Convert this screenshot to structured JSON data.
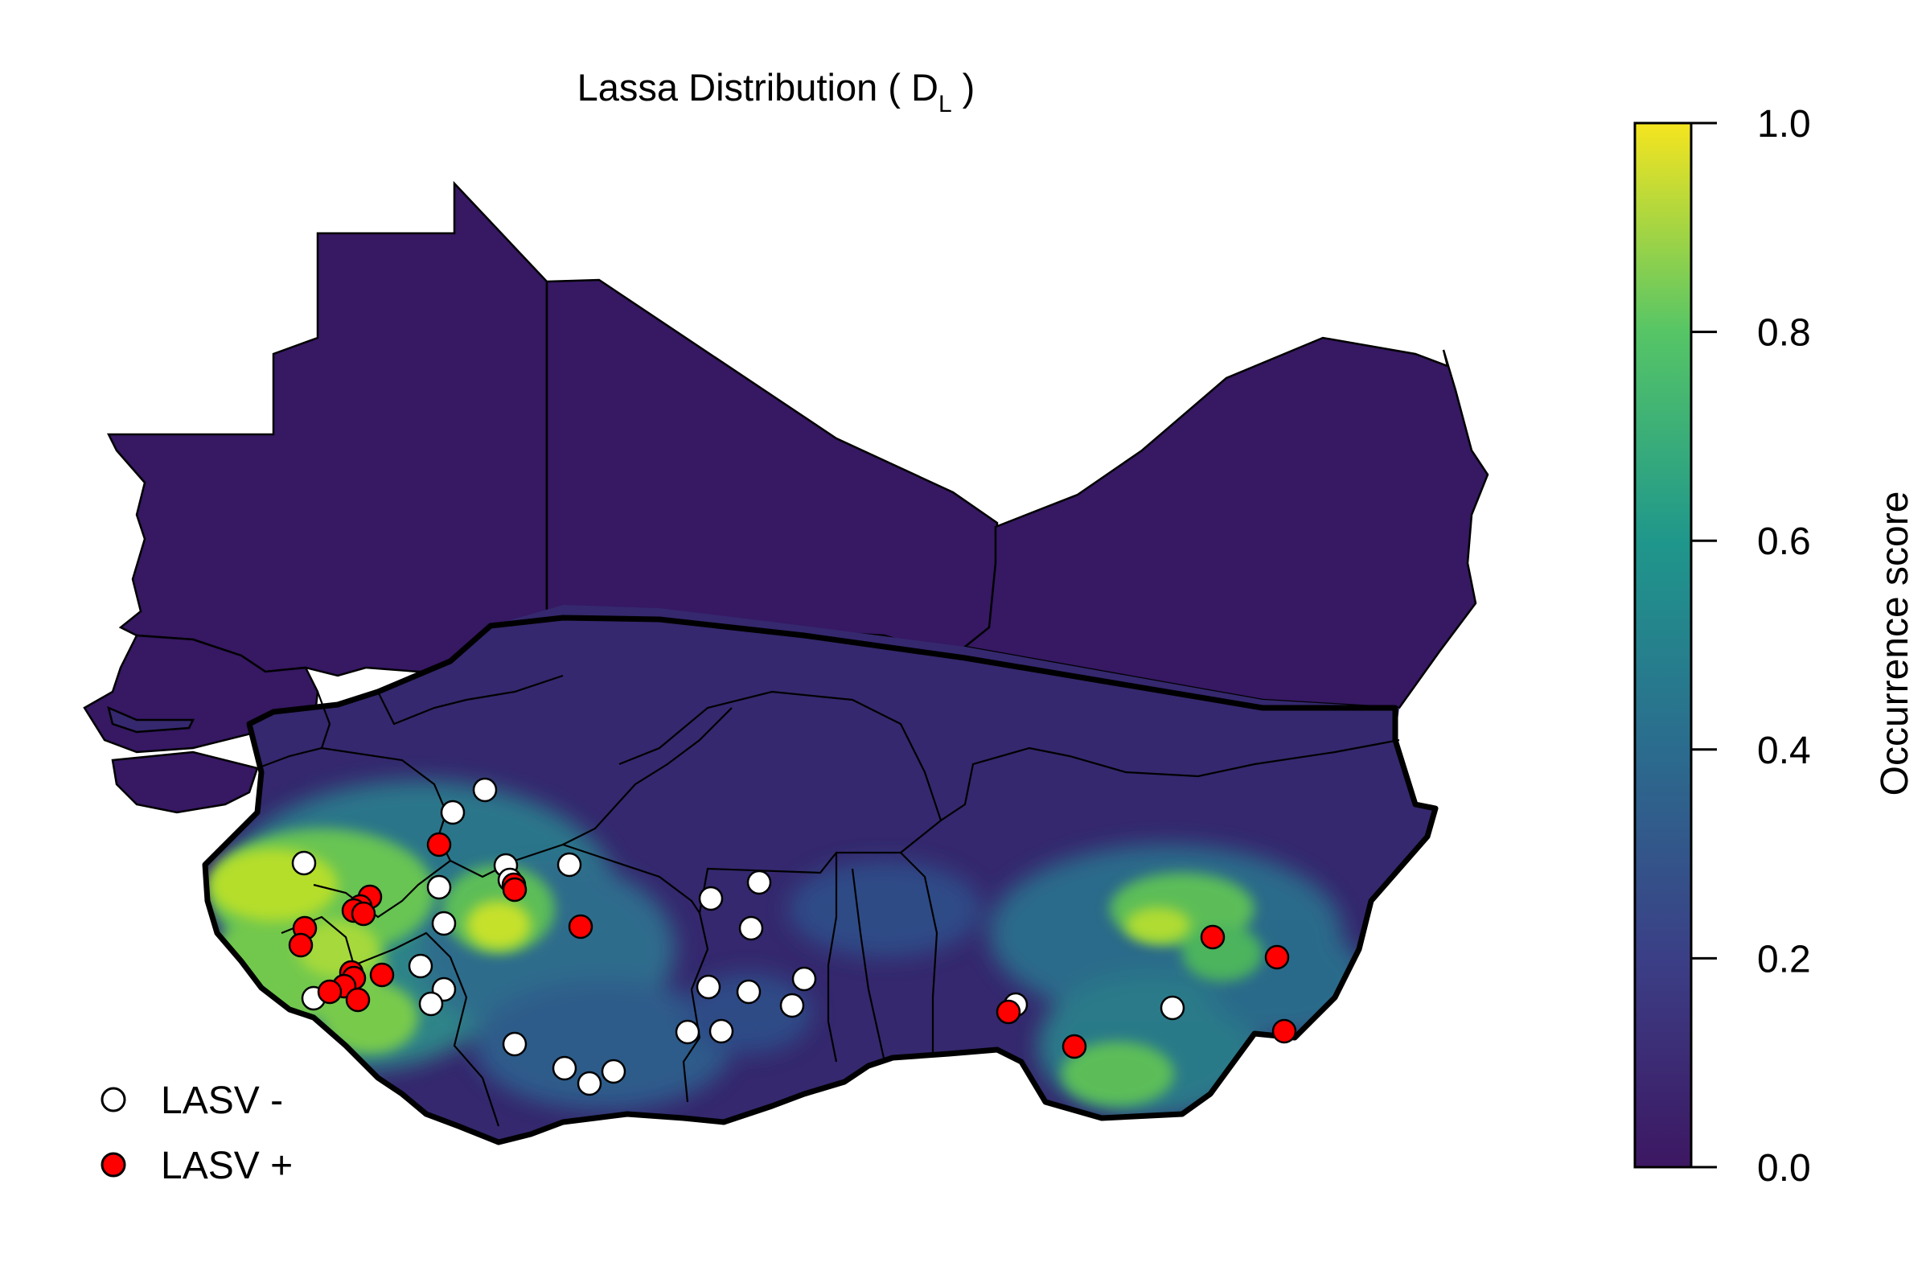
{
  "title": {
    "prefix": "Lassa Distribution ( D",
    "subscript": "L",
    "suffix": " )"
  },
  "colorbar": {
    "label": "Occurrence score",
    "ticks": [
      "0.0",
      "0.2",
      "0.4",
      "0.6",
      "0.8",
      "1.0"
    ],
    "tick_values": [
      0.0,
      0.2,
      0.4,
      0.6,
      0.8,
      1.0
    ],
    "colors": [
      "#440154",
      "#3b528b",
      "#21918c",
      "#5ec962",
      "#9bd93c",
      "#fde725"
    ]
  },
  "legend": {
    "negative_label": "LASV -",
    "positive_label": "LASV +",
    "negative_color": "#ffffff",
    "positive_color": "#ff0000"
  },
  "map_colors": {
    "background_region": "#361863",
    "low_region": "#35286e",
    "mid_region": "#2b5a8a",
    "high_region": "#7ccb4b",
    "peak_region": "#bfe12f",
    "border": "#000000"
  }
}
